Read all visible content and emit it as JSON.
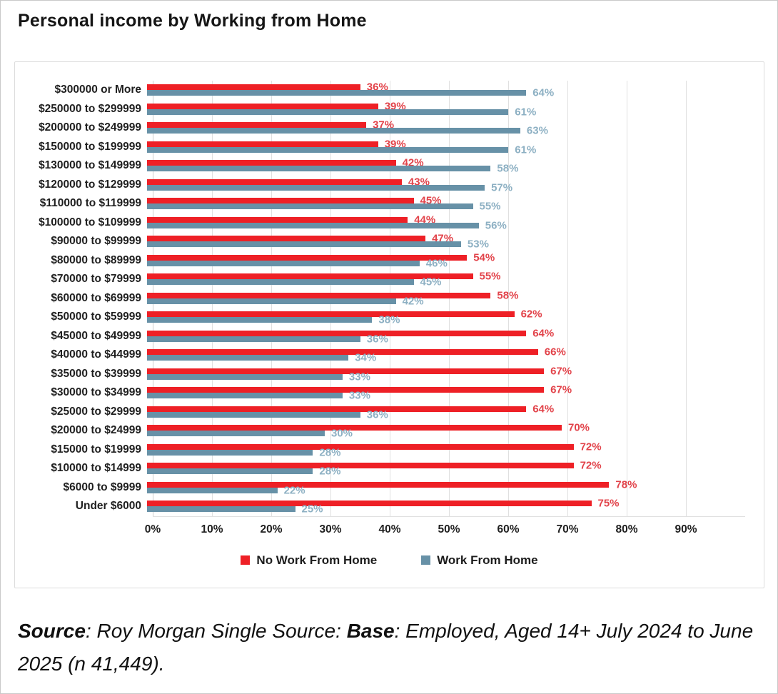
{
  "page": {
    "title": "Personal income by Working from Home"
  },
  "chart_data": {
    "type": "bar",
    "orientation": "horizontal",
    "title": "Personal income by Working from Home",
    "categories": [
      "$300000 or More",
      "$250000 to $299999",
      "$200000 to $249999",
      "$150000 to $199999",
      "$130000 to $149999",
      "$120000 to $129999",
      "$110000 to $119999",
      "$100000 to $109999",
      "$90000 to $99999",
      "$80000 to $89999",
      "$70000 to $79999",
      "$60000 to $69999",
      "$50000 to $59999",
      "$45000 to $49999",
      "$40000 to $44999",
      "$35000 to $39999",
      "$30000 to $34999",
      "$25000 to $29999",
      "$20000 to $24999",
      "$15000 to $19999",
      "$10000 to $14999",
      "$6000 to $9999",
      "Under $6000"
    ],
    "series": [
      {
        "name": "No Work From Home",
        "bar_color": "#ee2026",
        "label_color": "#e2434a",
        "values": [
          36,
          39,
          37,
          39,
          42,
          43,
          45,
          44,
          47,
          54,
          55,
          58,
          62,
          64,
          66,
          67,
          67,
          64,
          70,
          72,
          72,
          78,
          75
        ]
      },
      {
        "name": "Work From Home",
        "bar_color": "#6791a7",
        "label_color": "#8db0c3",
        "values": [
          64,
          61,
          63,
          61,
          58,
          57,
          55,
          56,
          53,
          46,
          45,
          42,
          38,
          36,
          34,
          33,
          33,
          36,
          30,
          28,
          28,
          22,
          25
        ]
      }
    ],
    "value_suffix": "%",
    "x_ticks": [
      "0%",
      "10%",
      "20%",
      "30%",
      "40%",
      "50%",
      "60%",
      "70%",
      "80%",
      "90%"
    ],
    "xlim": [
      0,
      100
    ],
    "grid": true,
    "legend_position": "bottom"
  },
  "footer": {
    "source_label": "Source",
    "source_text": ": Roy Morgan Single Source: ",
    "base_label": "Base",
    "base_text": ": Employed, Aged 14+ July 2024 to June 2025 (n 41,449)."
  }
}
